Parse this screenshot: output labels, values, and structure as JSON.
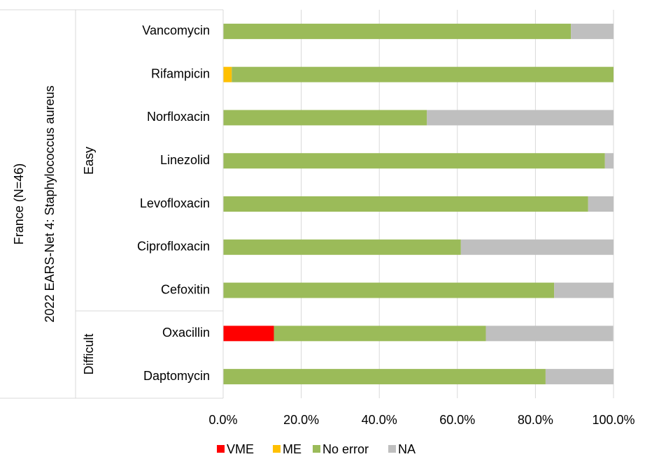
{
  "chart_data": {
    "type": "stacked-barh",
    "outer_labels": [
      "France (N=46)",
      "2022 EARS-Net 4: Staphylococcus aureus"
    ],
    "category_groups": [
      "Easy",
      "Difficult"
    ],
    "categories": [
      "Vancomycin",
      "Rifampicin",
      "Norfloxacin",
      "Linezolid",
      "Levofloxacin",
      "Ciprofloxacin",
      "Cefoxitin",
      "Oxacillin",
      "Daptomycin"
    ],
    "series": [
      {
        "name": "VME",
        "color": "#ff0000",
        "values": [
          0,
          0,
          0,
          0,
          0,
          0,
          0,
          13.0,
          0
        ]
      },
      {
        "name": "ME",
        "color": "#ffc000",
        "values": [
          0,
          2.2,
          0,
          0,
          0,
          0,
          0,
          0,
          0
        ]
      },
      {
        "name": "No error",
        "color": "#9bbb59",
        "values": [
          89.1,
          97.8,
          52.2,
          97.8,
          93.5,
          60.9,
          84.8,
          54.3,
          82.6
        ]
      },
      {
        "name": "NA",
        "color": "#bfbfbf",
        "values": [
          10.9,
          0,
          47.8,
          2.2,
          6.5,
          39.1,
          15.2,
          32.6,
          17.4
        ]
      }
    ],
    "xlim": [
      0,
      100
    ],
    "xticks": [
      {
        "value": 0,
        "label": "0.0%"
      },
      {
        "value": 20,
        "label": "20.0%"
      },
      {
        "value": 40,
        "label": "40.0%"
      },
      {
        "value": 60,
        "label": "60.0%"
      },
      {
        "value": 80,
        "label": "80.0%"
      },
      {
        "value": 100,
        "label": "100.0%"
      }
    ],
    "grid": true,
    "legend": "bottom"
  }
}
